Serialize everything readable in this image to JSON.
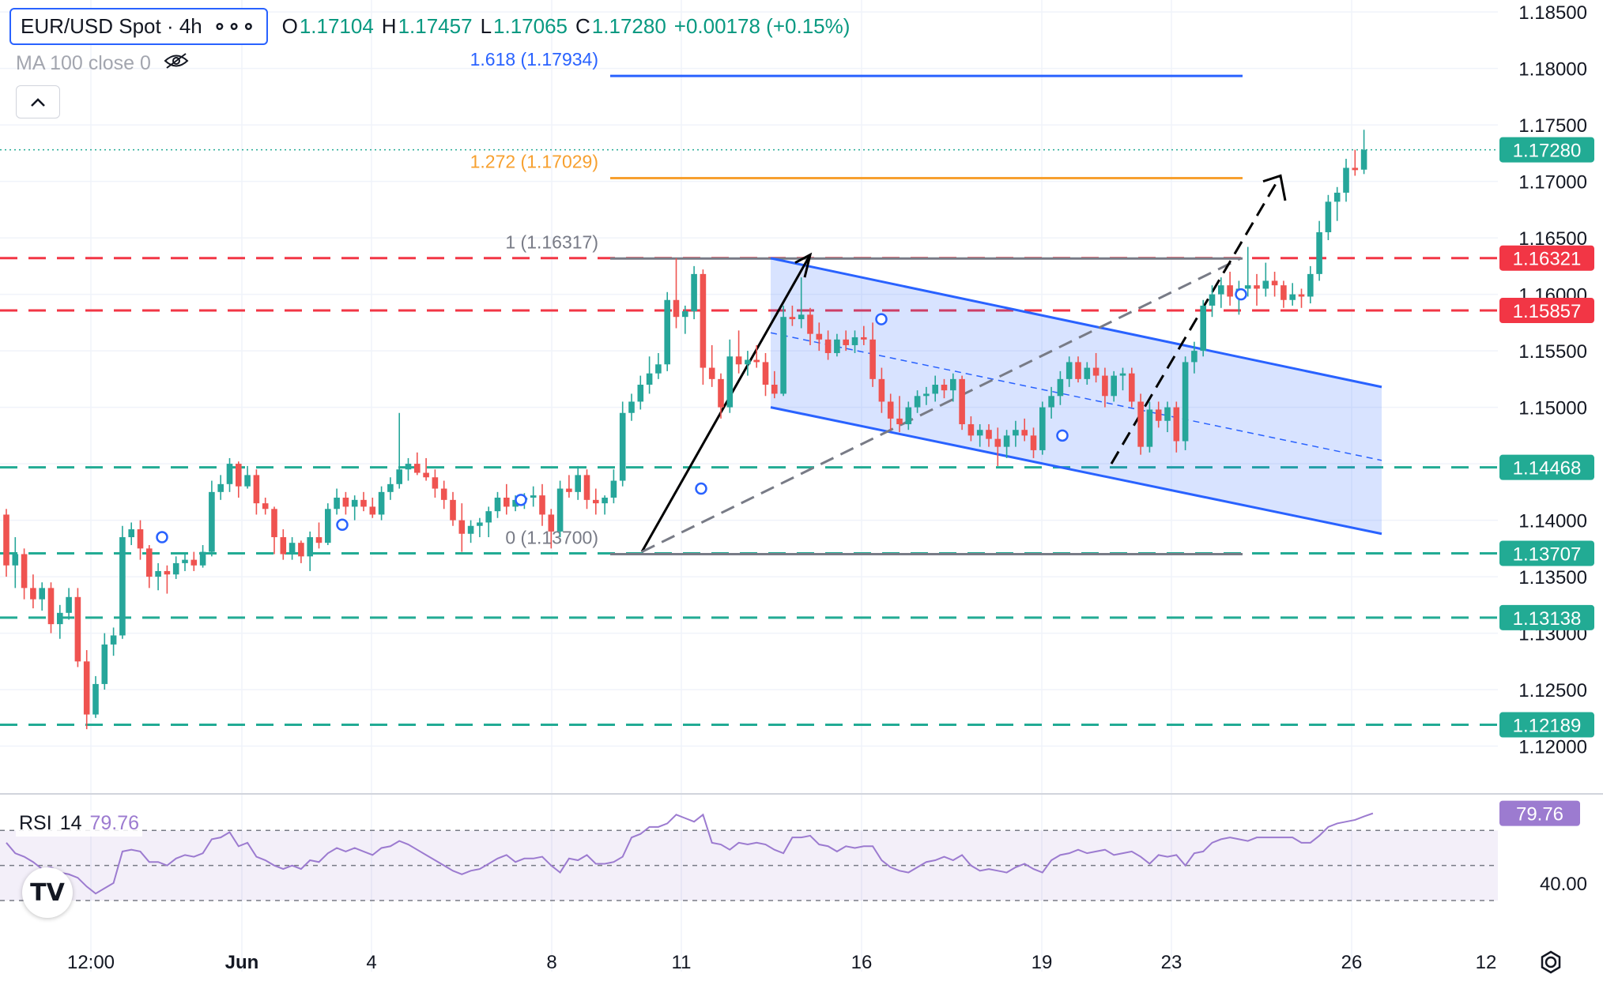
{
  "header": {
    "symbol": "EUR/USD Spot · 4h",
    "more": "∘∘∘",
    "ohlc": [
      {
        "k": "O",
        "v": "1.17104"
      },
      {
        "k": "H",
        "v": "1.17457"
      },
      {
        "k": "L",
        "v": "1.17065"
      },
      {
        "k": "C",
        "v": "1.17280"
      }
    ],
    "change": "+0.00178 (+0.15%)",
    "ma_label": "MA 100 close 0"
  },
  "rsi_legend": {
    "name": "RSI",
    "period": "14",
    "value": "79.76"
  },
  "colors": {
    "up": "#26a69a",
    "down": "#ef5350",
    "channel": "#2962ff",
    "fib_1618": "#2962ff",
    "fib_1272": "#f7a02f",
    "fib_neutral": "#787b86",
    "support": "#22ab94",
    "resistance": "#f23645",
    "rsi": "#9c7bd0"
  },
  "chart_data": {
    "type": "candlestick",
    "instrument": "EUR/USD Spot",
    "timeframe": "4h",
    "ylim": [
      1.1185,
      1.1855
    ],
    "y_ticks": [
      "1.18500",
      "1.18000",
      "1.17500",
      "1.17000",
      "1.16500",
      "1.16000",
      "1.15500",
      "1.15000",
      "1.14000",
      "1.13500",
      "1.13000",
      "1.12500",
      "1.12000"
    ],
    "x_ticks": [
      "12:00",
      "Jun",
      "4",
      "8",
      "11",
      "16",
      "19",
      "23",
      "26",
      "12"
    ],
    "candles": [
      {
        "o": 1.1405,
        "h": 1.141,
        "l": 1.135,
        "c": 1.136
      },
      {
        "o": 1.136,
        "h": 1.1385,
        "l": 1.134,
        "c": 1.137
      },
      {
        "o": 1.137,
        "h": 1.1375,
        "l": 1.133,
        "c": 1.134
      },
      {
        "o": 1.134,
        "h": 1.1352,
        "l": 1.1322,
        "c": 1.133
      },
      {
        "o": 1.133,
        "h": 1.1345,
        "l": 1.132,
        "c": 1.134
      },
      {
        "o": 1.134,
        "h": 1.1345,
        "l": 1.13,
        "c": 1.1308
      },
      {
        "o": 1.1308,
        "h": 1.1325,
        "l": 1.1295,
        "c": 1.1318
      },
      {
        "o": 1.1318,
        "h": 1.134,
        "l": 1.1312,
        "c": 1.1332
      },
      {
        "o": 1.1332,
        "h": 1.134,
        "l": 1.127,
        "c": 1.1275
      },
      {
        "o": 1.1275,
        "h": 1.1285,
        "l": 1.1215,
        "c": 1.1228
      },
      {
        "o": 1.1228,
        "h": 1.1262,
        "l": 1.1225,
        "c": 1.1255
      },
      {
        "o": 1.1255,
        "h": 1.13,
        "l": 1.125,
        "c": 1.129
      },
      {
        "o": 1.129,
        "h": 1.1305,
        "l": 1.128,
        "c": 1.1298
      },
      {
        "o": 1.1298,
        "h": 1.1395,
        "l": 1.1295,
        "c": 1.1385
      },
      {
        "o": 1.1385,
        "h": 1.1398,
        "l": 1.1378,
        "c": 1.1392
      },
      {
        "o": 1.1392,
        "h": 1.14,
        "l": 1.1365,
        "c": 1.1375
      },
      {
        "o": 1.1375,
        "h": 1.1378,
        "l": 1.134,
        "c": 1.135
      },
      {
        "o": 1.135,
        "h": 1.1362,
        "l": 1.1338,
        "c": 1.1355
      },
      {
        "o": 1.1355,
        "h": 1.136,
        "l": 1.1335,
        "c": 1.1352
      },
      {
        "o": 1.1352,
        "h": 1.1368,
        "l": 1.1348,
        "c": 1.1362
      },
      {
        "o": 1.1362,
        "h": 1.137,
        "l": 1.1355,
        "c": 1.1365
      },
      {
        "o": 1.1365,
        "h": 1.1372,
        "l": 1.1355,
        "c": 1.136
      },
      {
        "o": 1.136,
        "h": 1.1378,
        "l": 1.1358,
        "c": 1.1372
      },
      {
        "o": 1.1372,
        "h": 1.1435,
        "l": 1.1368,
        "c": 1.1425
      },
      {
        "o": 1.1425,
        "h": 1.144,
        "l": 1.1418,
        "c": 1.1432
      },
      {
        "o": 1.1432,
        "h": 1.1455,
        "l": 1.1425,
        "c": 1.145
      },
      {
        "o": 1.145,
        "h": 1.1452,
        "l": 1.142,
        "c": 1.143
      },
      {
        "o": 1.143,
        "h": 1.1448,
        "l": 1.1428,
        "c": 1.144
      },
      {
        "o": 1.144,
        "h": 1.1445,
        "l": 1.1405,
        "c": 1.1415
      },
      {
        "o": 1.1415,
        "h": 1.142,
        "l": 1.1405,
        "c": 1.141
      },
      {
        "o": 1.141,
        "h": 1.1412,
        "l": 1.137,
        "c": 1.1385
      },
      {
        "o": 1.1385,
        "h": 1.1392,
        "l": 1.1365,
        "c": 1.137
      },
      {
        "o": 1.137,
        "h": 1.1385,
        "l": 1.1365,
        "c": 1.138
      },
      {
        "o": 1.138,
        "h": 1.1382,
        "l": 1.1362,
        "c": 1.1368
      },
      {
        "o": 1.1368,
        "h": 1.139,
        "l": 1.1355,
        "c": 1.1385
      },
      {
        "o": 1.1385,
        "h": 1.1398,
        "l": 1.1375,
        "c": 1.138
      },
      {
        "o": 1.138,
        "h": 1.1415,
        "l": 1.1378,
        "c": 1.141
      },
      {
        "o": 1.141,
        "h": 1.1428,
        "l": 1.1405,
        "c": 1.142
      },
      {
        "o": 1.142,
        "h": 1.1425,
        "l": 1.1405,
        "c": 1.1412
      },
      {
        "o": 1.1412,
        "h": 1.1422,
        "l": 1.14,
        "c": 1.1418
      },
      {
        "o": 1.1418,
        "h": 1.1425,
        "l": 1.1408,
        "c": 1.1412
      },
      {
        "o": 1.1412,
        "h": 1.142,
        "l": 1.1402,
        "c": 1.1405
      },
      {
        "o": 1.1405,
        "h": 1.143,
        "l": 1.14,
        "c": 1.1425
      },
      {
        "o": 1.1425,
        "h": 1.1438,
        "l": 1.1418,
        "c": 1.1432
      },
      {
        "o": 1.1432,
        "h": 1.1495,
        "l": 1.1428,
        "c": 1.1445
      },
      {
        "o": 1.1445,
        "h": 1.1455,
        "l": 1.1435,
        "c": 1.145
      },
      {
        "o": 1.145,
        "h": 1.146,
        "l": 1.144,
        "c": 1.1442
      },
      {
        "o": 1.1442,
        "h": 1.1455,
        "l": 1.1435,
        "c": 1.1438
      },
      {
        "o": 1.1438,
        "h": 1.1445,
        "l": 1.142,
        "c": 1.1428
      },
      {
        "o": 1.1428,
        "h": 1.1435,
        "l": 1.141,
        "c": 1.1418
      },
      {
        "o": 1.1418,
        "h": 1.1425,
        "l": 1.1395,
        "c": 1.14
      },
      {
        "o": 1.14,
        "h": 1.1415,
        "l": 1.1372,
        "c": 1.1388
      },
      {
        "o": 1.1388,
        "h": 1.14,
        "l": 1.138,
        "c": 1.1395
      },
      {
        "o": 1.1395,
        "h": 1.1402,
        "l": 1.1385,
        "c": 1.1398
      },
      {
        "o": 1.1398,
        "h": 1.1412,
        "l": 1.1385,
        "c": 1.1408
      },
      {
        "o": 1.1408,
        "h": 1.1425,
        "l": 1.1402,
        "c": 1.142
      },
      {
        "o": 1.142,
        "h": 1.1432,
        "l": 1.1405,
        "c": 1.1412
      },
      {
        "o": 1.1412,
        "h": 1.1422,
        "l": 1.1408,
        "c": 1.1418
      },
      {
        "o": 1.1418,
        "h": 1.1424,
        "l": 1.141,
        "c": 1.142
      },
      {
        "o": 1.142,
        "h": 1.143,
        "l": 1.1412,
        "c": 1.1422
      },
      {
        "o": 1.1422,
        "h": 1.1432,
        "l": 1.1395,
        "c": 1.1405
      },
      {
        "o": 1.1405,
        "h": 1.141,
        "l": 1.1375,
        "c": 1.139
      },
      {
        "o": 1.139,
        "h": 1.1435,
        "l": 1.1385,
        "c": 1.1428
      },
      {
        "o": 1.1428,
        "h": 1.144,
        "l": 1.142,
        "c": 1.1425
      },
      {
        "o": 1.1425,
        "h": 1.1448,
        "l": 1.1418,
        "c": 1.144
      },
      {
        "o": 1.144,
        "h": 1.1445,
        "l": 1.141,
        "c": 1.1418
      },
      {
        "o": 1.1418,
        "h": 1.1428,
        "l": 1.1405,
        "c": 1.1415
      },
      {
        "o": 1.1415,
        "h": 1.1422,
        "l": 1.1405,
        "c": 1.142
      },
      {
        "o": 1.142,
        "h": 1.1445,
        "l": 1.1415,
        "c": 1.1435
      },
      {
        "o": 1.1435,
        "h": 1.1505,
        "l": 1.143,
        "c": 1.1495
      },
      {
        "o": 1.1495,
        "h": 1.1512,
        "l": 1.1488,
        "c": 1.1505
      },
      {
        "o": 1.1505,
        "h": 1.1528,
        "l": 1.1498,
        "c": 1.152
      },
      {
        "o": 1.152,
        "h": 1.1545,
        "l": 1.1512,
        "c": 1.153
      },
      {
        "o": 1.153,
        "h": 1.1548,
        "l": 1.1525,
        "c": 1.1538
      },
      {
        "o": 1.1538,
        "h": 1.1602,
        "l": 1.1532,
        "c": 1.1595
      },
      {
        "o": 1.1595,
        "h": 1.1632,
        "l": 1.157,
        "c": 1.158
      },
      {
        "o": 1.158,
        "h": 1.159,
        "l": 1.1565,
        "c": 1.1585
      },
      {
        "o": 1.1585,
        "h": 1.1625,
        "l": 1.1578,
        "c": 1.1618
      },
      {
        "o": 1.1618,
        "h": 1.1622,
        "l": 1.152,
        "c": 1.1535
      },
      {
        "o": 1.1535,
        "h": 1.1555,
        "l": 1.1518,
        "c": 1.1525
      },
      {
        "o": 1.1525,
        "h": 1.153,
        "l": 1.149,
        "c": 1.15
      },
      {
        "o": 1.15,
        "h": 1.156,
        "l": 1.1495,
        "c": 1.1545
      },
      {
        "o": 1.1545,
        "h": 1.1568,
        "l": 1.153,
        "c": 1.1538
      },
      {
        "o": 1.1538,
        "h": 1.155,
        "l": 1.1528,
        "c": 1.1542
      },
      {
        "o": 1.1542,
        "h": 1.1555,
        "l": 1.1535,
        "c": 1.154
      },
      {
        "o": 1.154,
        "h": 1.1548,
        "l": 1.151,
        "c": 1.152
      },
      {
        "o": 1.152,
        "h": 1.1532,
        "l": 1.1508,
        "c": 1.1512
      },
      {
        "o": 1.1512,
        "h": 1.159,
        "l": 1.151,
        "c": 1.158
      },
      {
        "o": 1.158,
        "h": 1.159,
        "l": 1.1572,
        "c": 1.1578
      },
      {
        "o": 1.1578,
        "h": 1.1615,
        "l": 1.157,
        "c": 1.1582
      },
      {
        "o": 1.1582,
        "h": 1.1588,
        "l": 1.1555,
        "c": 1.1565
      },
      {
        "o": 1.1565,
        "h": 1.1575,
        "l": 1.155,
        "c": 1.156
      },
      {
        "o": 1.156,
        "h": 1.1568,
        "l": 1.1542,
        "c": 1.1548
      },
      {
        "o": 1.1548,
        "h": 1.1565,
        "l": 1.1545,
        "c": 1.156
      },
      {
        "o": 1.156,
        "h": 1.1568,
        "l": 1.155,
        "c": 1.1555
      },
      {
        "o": 1.1555,
        "h": 1.1568,
        "l": 1.1548,
        "c": 1.1562
      },
      {
        "o": 1.1562,
        "h": 1.1572,
        "l": 1.1555,
        "c": 1.156
      },
      {
        "o": 1.156,
        "h": 1.1575,
        "l": 1.1518,
        "c": 1.1525
      },
      {
        "o": 1.1525,
        "h": 1.1535,
        "l": 1.1495,
        "c": 1.1505
      },
      {
        "o": 1.1505,
        "h": 1.1512,
        "l": 1.148,
        "c": 1.149
      },
      {
        "o": 1.149,
        "h": 1.151,
        "l": 1.1478,
        "c": 1.1485
      },
      {
        "o": 1.1485,
        "h": 1.1505,
        "l": 1.148,
        "c": 1.15
      },
      {
        "o": 1.15,
        "h": 1.1515,
        "l": 1.1495,
        "c": 1.151
      },
      {
        "o": 1.151,
        "h": 1.1518,
        "l": 1.1502,
        "c": 1.1512
      },
      {
        "o": 1.1512,
        "h": 1.1528,
        "l": 1.1505,
        "c": 1.152
      },
      {
        "o": 1.152,
        "h": 1.1525,
        "l": 1.1508,
        "c": 1.1515
      },
      {
        "o": 1.1515,
        "h": 1.153,
        "l": 1.1505,
        "c": 1.1525
      },
      {
        "o": 1.1525,
        "h": 1.1528,
        "l": 1.148,
        "c": 1.1485
      },
      {
        "o": 1.1485,
        "h": 1.1492,
        "l": 1.147,
        "c": 1.1475
      },
      {
        "o": 1.1475,
        "h": 1.1485,
        "l": 1.1465,
        "c": 1.148
      },
      {
        "o": 1.148,
        "h": 1.1485,
        "l": 1.1465,
        "c": 1.1472
      },
      {
        "o": 1.1472,
        "h": 1.1482,
        "l": 1.1448,
        "c": 1.1465
      },
      {
        "o": 1.1465,
        "h": 1.148,
        "l": 1.1455,
        "c": 1.1475
      },
      {
        "o": 1.1475,
        "h": 1.1488,
        "l": 1.1465,
        "c": 1.148
      },
      {
        "o": 1.148,
        "h": 1.149,
        "l": 1.147,
        "c": 1.1475
      },
      {
        "o": 1.1475,
        "h": 1.1482,
        "l": 1.1455,
        "c": 1.1462
      },
      {
        "o": 1.1462,
        "h": 1.1505,
        "l": 1.1458,
        "c": 1.15
      },
      {
        "o": 1.15,
        "h": 1.1518,
        "l": 1.149,
        "c": 1.151
      },
      {
        "o": 1.151,
        "h": 1.1532,
        "l": 1.1502,
        "c": 1.1525
      },
      {
        "o": 1.1525,
        "h": 1.1545,
        "l": 1.1518,
        "c": 1.154
      },
      {
        "o": 1.154,
        "h": 1.1545,
        "l": 1.1522,
        "c": 1.1525
      },
      {
        "o": 1.1525,
        "h": 1.154,
        "l": 1.152,
        "c": 1.1535
      },
      {
        "o": 1.1535,
        "h": 1.1548,
        "l": 1.1522,
        "c": 1.1528
      },
      {
        "o": 1.1528,
        "h": 1.1535,
        "l": 1.15,
        "c": 1.151
      },
      {
        "o": 1.151,
        "h": 1.1532,
        "l": 1.1505,
        "c": 1.1528
      },
      {
        "o": 1.1528,
        "h": 1.1535,
        "l": 1.1515,
        "c": 1.153
      },
      {
        "o": 1.153,
        "h": 1.1535,
        "l": 1.15,
        "c": 1.1505
      },
      {
        "o": 1.1505,
        "h": 1.1512,
        "l": 1.1458,
        "c": 1.1465
      },
      {
        "o": 1.1465,
        "h": 1.1505,
        "l": 1.146,
        "c": 1.1498
      },
      {
        "o": 1.1498,
        "h": 1.1505,
        "l": 1.1482,
        "c": 1.1488
      },
      {
        "o": 1.1488,
        "h": 1.1505,
        "l": 1.1478,
        "c": 1.15
      },
      {
        "o": 1.15,
        "h": 1.1505,
        "l": 1.146,
        "c": 1.147
      },
      {
        "o": 1.147,
        "h": 1.1545,
        "l": 1.1462,
        "c": 1.154
      },
      {
        "o": 1.154,
        "h": 1.1558,
        "l": 1.153,
        "c": 1.155
      },
      {
        "o": 1.155,
        "h": 1.1595,
        "l": 1.1545,
        "c": 1.159
      },
      {
        "o": 1.159,
        "h": 1.1608,
        "l": 1.158,
        "c": 1.16
      },
      {
        "o": 1.16,
        "h": 1.1615,
        "l": 1.1588,
        "c": 1.1608
      },
      {
        "o": 1.1608,
        "h": 1.162,
        "l": 1.159,
        "c": 1.1598
      },
      {
        "o": 1.1598,
        "h": 1.1612,
        "l": 1.1582,
        "c": 1.1605
      },
      {
        "o": 1.1605,
        "h": 1.1642,
        "l": 1.1598,
        "c": 1.1608
      },
      {
        "o": 1.1608,
        "h": 1.1618,
        "l": 1.159,
        "c": 1.1605
      },
      {
        "o": 1.1605,
        "h": 1.1628,
        "l": 1.1598,
        "c": 1.1612
      },
      {
        "o": 1.1612,
        "h": 1.162,
        "l": 1.1598,
        "c": 1.1608
      },
      {
        "o": 1.1608,
        "h": 1.1612,
        "l": 1.1588,
        "c": 1.1595
      },
      {
        "o": 1.1595,
        "h": 1.161,
        "l": 1.159,
        "c": 1.16
      },
      {
        "o": 1.16,
        "h": 1.1605,
        "l": 1.1588,
        "c": 1.1598
      },
      {
        "o": 1.1598,
        "h": 1.1625,
        "l": 1.1592,
        "c": 1.1618
      },
      {
        "o": 1.1618,
        "h": 1.1665,
        "l": 1.1612,
        "c": 1.1655
      },
      {
        "o": 1.1655,
        "h": 1.1688,
        "l": 1.1648,
        "c": 1.1682
      },
      {
        "o": 1.1682,
        "h": 1.1695,
        "l": 1.1665,
        "c": 1.169
      },
      {
        "o": 1.169,
        "h": 1.172,
        "l": 1.1682,
        "c": 1.1712
      },
      {
        "o": 1.1712,
        "h": 1.1728,
        "l": 1.1705,
        "c": 1.171
      },
      {
        "o": 1.17104,
        "h": 1.17457,
        "l": 1.17065,
        "c": 1.1728
      }
    ],
    "rsi": {
      "period": 14,
      "last": 79.76,
      "levels": [
        70,
        50,
        30
      ],
      "tick_labels": [
        "40.00"
      ],
      "values": [
        63,
        57,
        55,
        52,
        48,
        49,
        46,
        45,
        43,
        38,
        34,
        37,
        40,
        58,
        59,
        58,
        52,
        52,
        50,
        54,
        56,
        55,
        57,
        65,
        66,
        69,
        61,
        63,
        55,
        53,
        50,
        48,
        50,
        48,
        53,
        52,
        57,
        60,
        58,
        60,
        58,
        56,
        60,
        61,
        64,
        62,
        59,
        56,
        53,
        50,
        47,
        45,
        47,
        48,
        51,
        54,
        56,
        52,
        54,
        54,
        55,
        50,
        46,
        54,
        53,
        56,
        51,
        51,
        52,
        55,
        66,
        68,
        72,
        72,
        74,
        79,
        77,
        75,
        79,
        63,
        62,
        59,
        63,
        62,
        63,
        62,
        59,
        57,
        66,
        66,
        67,
        62,
        61,
        58,
        61,
        60,
        61,
        61,
        53,
        49,
        47,
        46,
        49,
        52,
        53,
        55,
        53,
        56,
        50,
        47,
        48,
        47,
        46,
        49,
        51,
        48,
        46,
        53,
        56,
        57,
        59,
        57,
        58,
        59,
        56,
        57,
        58,
        55,
        51,
        56,
        55,
        56,
        50,
        57,
        58,
        63,
        65,
        66,
        65,
        64,
        66,
        66,
        66,
        66,
        66,
        63,
        63,
        67,
        72,
        74,
        75,
        76,
        78,
        79.76
      ]
    },
    "fibonacci": [
      {
        "ratio": "1.618",
        "price": 1.17934,
        "label": "1.618 (1.17934)"
      },
      {
        "ratio": "1.272",
        "price": 1.17029,
        "label": "1.272 (1.17029)"
      },
      {
        "ratio": "1",
        "price": 1.16317,
        "label": "1 (1.16317)"
      },
      {
        "ratio": "0",
        "price": 1.137,
        "label": "0 (1.13700)"
      }
    ],
    "horizontal_levels": [
      {
        "price": 1.16321,
        "label": "1.16321",
        "kind": "resistance"
      },
      {
        "price": 1.15857,
        "label": "1.15857",
        "kind": "resistance"
      },
      {
        "price": 1.14468,
        "label": "1.14468",
        "kind": "support"
      },
      {
        "price": 1.13707,
        "label": "1.13707",
        "kind": "support"
      },
      {
        "price": 1.13138,
        "label": "1.13138",
        "kind": "support"
      },
      {
        "price": 1.12189,
        "label": "1.12189",
        "kind": "support"
      }
    ],
    "last_price": {
      "price": 1.1728,
      "label": "1.17280"
    },
    "channel": {
      "upper": [
        [
          1.1632,
          1.1518
        ]
      ],
      "lower": [
        [
          1.15,
          1.1388
        ]
      ]
    }
  }
}
